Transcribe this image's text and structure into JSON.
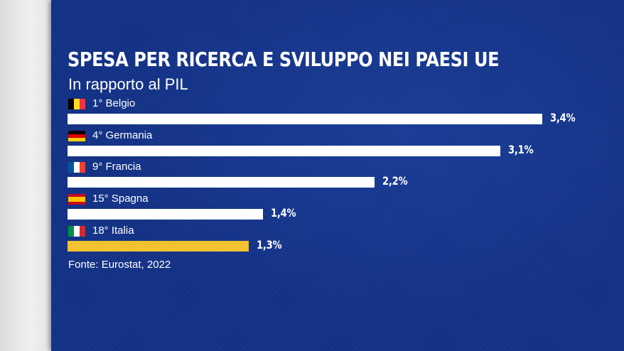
{
  "header": {
    "title": "SPESA PER RICERCA E SVILUPPO NEI PAESI UE",
    "subtitle": "In rapporto al PIL"
  },
  "source": "Fonte: Eurostat, 2022",
  "colors": {
    "background": "#0d2c82",
    "bar_default": "#ffffff",
    "bar_highlight": "#f2c230",
    "text": "#ffffff"
  },
  "chart_data": {
    "type": "bar",
    "orientation": "horizontal",
    "title": "SPESA PER RICERCA E SVILUPPO NEI PAESI UE",
    "subtitle": "In rapporto al PIL",
    "unit": "%",
    "categories": [
      "1° Belgio",
      "4° Germania",
      "9° Francia",
      "15° Spagna",
      "18° Italia"
    ],
    "values": [
      3.4,
      3.1,
      2.2,
      1.4,
      1.3
    ],
    "value_labels": [
      "3,4%",
      "3,1%",
      "2,2%",
      "1,4%",
      "1,3%"
    ],
    "flags": [
      "belgium-flag-icon",
      "germany-flag-icon",
      "france-flag-icon",
      "spain-flag-icon",
      "italy-flag-icon"
    ],
    "highlight": "18° Italia",
    "xlim": [
      0,
      3.4
    ],
    "grid": false,
    "legend": "none"
  }
}
